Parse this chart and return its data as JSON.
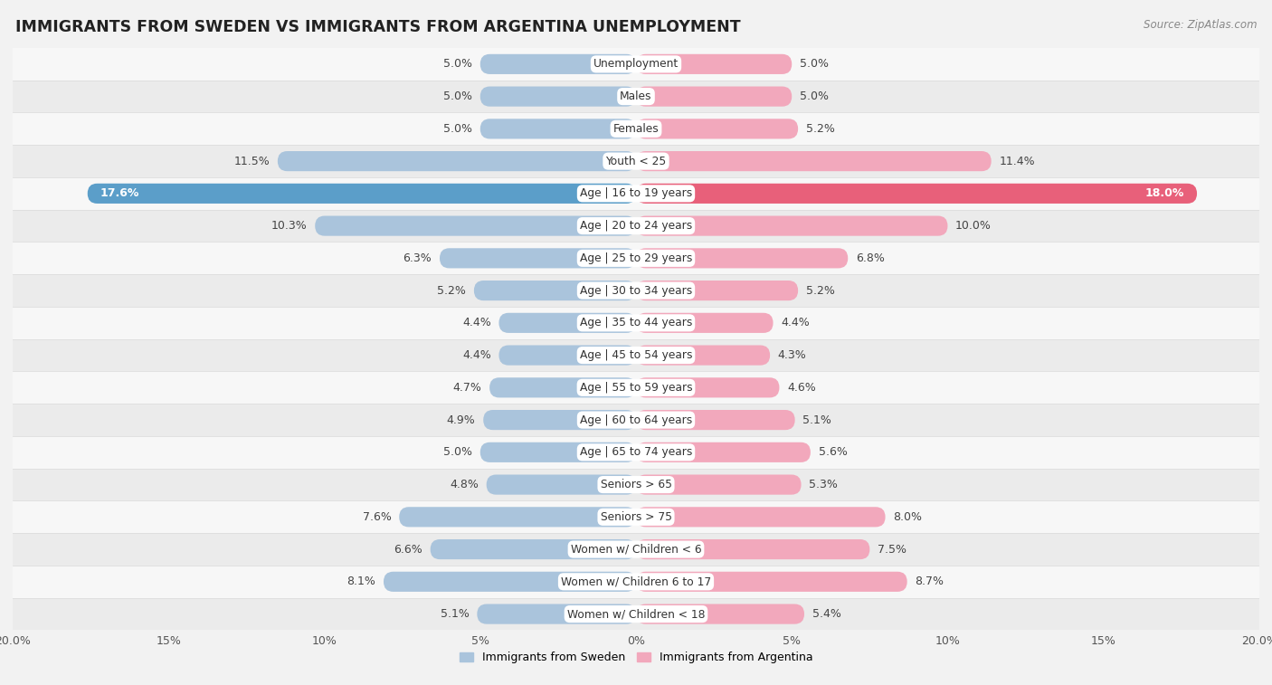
{
  "title": "IMMIGRANTS FROM SWEDEN VS IMMIGRANTS FROM ARGENTINA UNEMPLOYMENT",
  "source": "Source: ZipAtlas.com",
  "categories": [
    "Unemployment",
    "Males",
    "Females",
    "Youth < 25",
    "Age | 16 to 19 years",
    "Age | 20 to 24 years",
    "Age | 25 to 29 years",
    "Age | 30 to 34 years",
    "Age | 35 to 44 years",
    "Age | 45 to 54 years",
    "Age | 55 to 59 years",
    "Age | 60 to 64 years",
    "Age | 65 to 74 years",
    "Seniors > 65",
    "Seniors > 75",
    "Women w/ Children < 6",
    "Women w/ Children 6 to 17",
    "Women w/ Children < 18"
  ],
  "sweden_values": [
    5.0,
    5.0,
    5.0,
    11.5,
    17.6,
    10.3,
    6.3,
    5.2,
    4.4,
    4.4,
    4.7,
    4.9,
    5.0,
    4.8,
    7.6,
    6.6,
    8.1,
    5.1
  ],
  "argentina_values": [
    5.0,
    5.0,
    5.2,
    11.4,
    18.0,
    10.0,
    6.8,
    5.2,
    4.4,
    4.3,
    4.6,
    5.1,
    5.6,
    5.3,
    8.0,
    7.5,
    8.7,
    5.4
  ],
  "sweden_color": "#aac4dc",
  "argentina_color": "#f2a8bc",
  "sweden_highlight_color": "#5b9ec9",
  "argentina_highlight_color": "#e8607a",
  "highlight_row": 4,
  "xlim": 20.0,
  "background_color": "#f2f2f2",
  "row_bg_odd": "#f7f7f7",
  "row_bg_even": "#ebebeb",
  "row_separator": "#dddddd",
  "legend_sweden": "Immigrants from Sweden",
  "legend_argentina": "Immigrants from Argentina",
  "bar_height": 0.62,
  "title_fontsize": 12.5,
  "label_fontsize": 9.0,
  "tick_fontsize": 9.0,
  "source_fontsize": 8.5,
  "value_fontsize": 9.0,
  "cat_fontsize": 8.8
}
